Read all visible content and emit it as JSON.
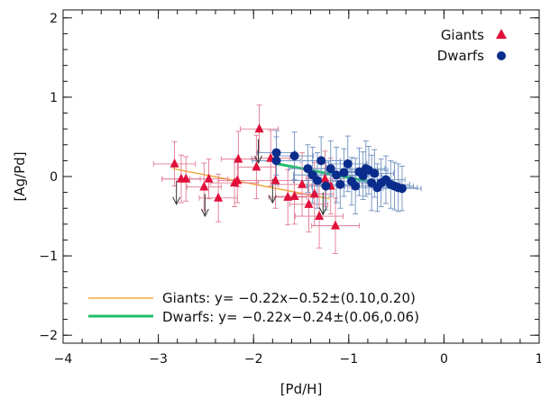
{
  "chart_data": {
    "type": "scatter",
    "xlabel": "[Pd/H]",
    "ylabel": "[Ag/Pd]",
    "xlim": [
      -4,
      1
    ],
    "ylim": [
      -2.1,
      2.1
    ],
    "xticks": [
      -4,
      -3,
      -2,
      -1,
      0,
      1
    ],
    "yticks": [
      -2,
      -1,
      0,
      1,
      2
    ],
    "xtick_labels": [
      "−4",
      "−3",
      "−2",
      "−1",
      "0",
      "1"
    ],
    "ytick_labels": [
      "−2",
      "−1",
      "0",
      "1",
      "2"
    ],
    "legend": {
      "position": "top-right",
      "entries": [
        {
          "label": "Giants",
          "marker": "triangle",
          "color": "#e0103a"
        },
        {
          "label": "Dwarfs",
          "marker": "circle",
          "color": "#0a2c8c"
        }
      ]
    },
    "fit_legend": [
      {
        "label": "Giants: y= −0.22x−0.52±(0.10,0.20)",
        "color": "#f4a73a"
      },
      {
        "label": "Dwarfs: y= −0.22x−0.24±(0.06,0.06)",
        "color": "#1fbf6a"
      }
    ],
    "colors": {
      "giants": "#e0103a",
      "giants_err": "#e07a92",
      "dwarfs": "#0a2c8c",
      "dwarfs_err": "#6d8fbf",
      "giants_fit": "#f4a73a",
      "dwarfs_fit": "#1fbf6a",
      "upper_limit_arrow": "#333333"
    },
    "series": [
      {
        "name": "Giants",
        "points": [
          {
            "x": -2.83,
            "y": 0.16,
            "xerr": 0.22,
            "yerr": 0.28
          },
          {
            "x": -2.76,
            "y": -0.03,
            "xerr": 0.2,
            "yerr": 0.3
          },
          {
            "x": -2.71,
            "y": -0.03,
            "xerr": 0.25,
            "yerr": 0.28
          },
          {
            "x": -2.52,
            "y": -0.13,
            "xerr": 0.18,
            "yerr": 0.3
          },
          {
            "x": -2.47,
            "y": -0.03,
            "xerr": 0.2,
            "yerr": 0.25
          },
          {
            "x": -2.37,
            "y": -0.27,
            "xerr": 0.2,
            "yerr": 0.3
          },
          {
            "x": -2.2,
            "y": -0.08,
            "xerr": 0.25,
            "yerr": 0.3
          },
          {
            "x": -2.16,
            "y": 0.22,
            "xerr": 0.18,
            "yerr": 0.35
          },
          {
            "x": -2.17,
            "y": -0.05,
            "xerr": 0.2,
            "yerr": 0.28
          },
          {
            "x": -1.97,
            "y": 0.12,
            "xerr": 0.2,
            "yerr": 0.4
          },
          {
            "x": -1.94,
            "y": 0.6,
            "xerr": 0.2,
            "yerr": 0.3
          },
          {
            "x": -1.82,
            "y": 0.23,
            "xerr": 0.2,
            "yerr": 0.35
          },
          {
            "x": -1.77,
            "y": -0.05,
            "xerr": 0.2,
            "yerr": 0.35
          },
          {
            "x": -1.64,
            "y": -0.26,
            "xerr": 0.2,
            "yerr": 0.35
          },
          {
            "x": -1.57,
            "y": -0.25,
            "xerr": 0.2,
            "yerr": 0.35
          },
          {
            "x": -1.49,
            "y": -0.1,
            "xerr": 0.25,
            "yerr": 0.4
          },
          {
            "x": -1.42,
            "y": -0.35,
            "xerr": 0.2,
            "yerr": 0.35
          },
          {
            "x": -1.36,
            "y": -0.22,
            "xerr": 0.2,
            "yerr": 0.4
          },
          {
            "x": -1.31,
            "y": -0.5,
            "xerr": 0.25,
            "yerr": 0.4
          },
          {
            "x": -1.25,
            "y": -0.03,
            "xerr": 0.2,
            "yerr": 0.35
          },
          {
            "x": -1.19,
            "y": -0.12,
            "xerr": 0.2,
            "yerr": 0.35
          },
          {
            "x": -1.14,
            "y": -0.62,
            "xerr": 0.25,
            "yerr": 0.35
          }
        ]
      },
      {
        "name": "Dwarfs",
        "points": [
          {
            "x": -1.76,
            "y": 0.3,
            "xerr": 0.2,
            "yerr": 0.28
          },
          {
            "x": -1.76,
            "y": 0.2,
            "xerr": 0.25,
            "yerr": 0.3
          },
          {
            "x": -1.57,
            "y": 0.26,
            "xerr": 0.2,
            "yerr": 0.3
          },
          {
            "x": -1.43,
            "y": 0.1,
            "xerr": 0.2,
            "yerr": 0.3
          },
          {
            "x": -1.38,
            "y": 0.02,
            "xerr": 0.2,
            "yerr": 0.35
          },
          {
            "x": -1.33,
            "y": -0.05,
            "xerr": 0.25,
            "yerr": 0.35
          },
          {
            "x": -1.29,
            "y": 0.2,
            "xerr": 0.2,
            "yerr": 0.3
          },
          {
            "x": -1.24,
            "y": -0.12,
            "xerr": 0.2,
            "yerr": 0.3
          },
          {
            "x": -1.19,
            "y": 0.1,
            "xerr": 0.2,
            "yerr": 0.35
          },
          {
            "x": -1.13,
            "y": 0.02,
            "xerr": 0.25,
            "yerr": 0.35
          },
          {
            "x": -1.09,
            "y": -0.1,
            "xerr": 0.2,
            "yerr": 0.3
          },
          {
            "x": -1.05,
            "y": 0.05,
            "xerr": 0.2,
            "yerr": 0.3
          },
          {
            "x": -1.01,
            "y": 0.16,
            "xerr": 0.2,
            "yerr": 0.35
          },
          {
            "x": -0.97,
            "y": -0.06,
            "xerr": 0.2,
            "yerr": 0.3
          },
          {
            "x": -0.93,
            "y": -0.12,
            "xerr": 0.25,
            "yerr": 0.35
          },
          {
            "x": -0.89,
            "y": 0.06,
            "xerr": 0.2,
            "yerr": 0.3
          },
          {
            "x": -0.85,
            "y": 0.01,
            "xerr": 0.2,
            "yerr": 0.3
          },
          {
            "x": -0.82,
            "y": 0.1,
            "xerr": 0.2,
            "yerr": 0.35
          },
          {
            "x": -0.79,
            "y": 0.08,
            "xerr": 0.2,
            "yerr": 0.3
          },
          {
            "x": -0.76,
            "y": -0.08,
            "xerr": 0.2,
            "yerr": 0.35
          },
          {
            "x": -0.73,
            "y": 0.04,
            "xerr": 0.2,
            "yerr": 0.3
          },
          {
            "x": -0.7,
            "y": -0.14,
            "xerr": 0.2,
            "yerr": 0.3
          },
          {
            "x": -0.66,
            "y": -0.08,
            "xerr": 0.2,
            "yerr": 0.3
          },
          {
            "x": -0.61,
            "y": -0.04,
            "xerr": 0.2,
            "yerr": 0.3
          },
          {
            "x": -0.56,
            "y": -0.1,
            "xerr": 0.2,
            "yerr": 0.3
          },
          {
            "x": -0.52,
            "y": -0.12,
            "xerr": 0.2,
            "yerr": 0.3
          },
          {
            "x": -0.48,
            "y": -0.14,
            "xerr": 0.2,
            "yerr": 0.3
          },
          {
            "x": -0.44,
            "y": -0.15,
            "xerr": 0.2,
            "yerr": 0.28
          }
        ]
      }
    ],
    "upper_limits": [
      {
        "x": -2.81,
        "y": -0.05,
        "y_end": -0.35
      },
      {
        "x": -2.51,
        "y": -0.22,
        "y_end": -0.5
      },
      {
        "x": -1.95,
        "y": 0.47,
        "y_end": 0.17
      },
      {
        "x": -1.8,
        "y": -0.03,
        "y_end": -0.33
      },
      {
        "x": -1.27,
        "y": -0.2,
        "y_end": -0.48
      }
    ],
    "fits": [
      {
        "name": "Giants fit",
        "x": [
          -2.85,
          -1.2
        ],
        "y": [
          0.1,
          -0.28
        ]
      },
      {
        "name": "Dwarfs fit",
        "x": [
          -1.75,
          -0.45
        ],
        "y": [
          0.16,
          -0.14
        ]
      }
    ]
  }
}
